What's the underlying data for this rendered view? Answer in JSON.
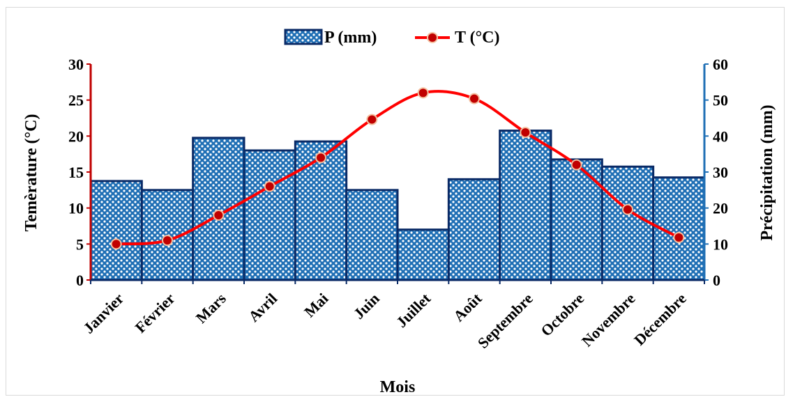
{
  "chart_data": {
    "type": "bar+line",
    "categories": [
      "Janvier",
      "Février",
      "Mars",
      "Avril",
      "Mai",
      "Juin",
      "Juillet",
      "Août",
      "Septembre",
      "Octobre",
      "Novembre",
      "Décembre"
    ],
    "series": [
      {
        "name": "P (mm)",
        "type": "bar",
        "axis": "right",
        "color": "#1f6fb5",
        "border": "#0a2a66",
        "values": [
          27.5,
          25,
          39.5,
          36,
          38.5,
          25,
          14,
          28,
          41.5,
          33.5,
          31.5,
          28.5
        ]
      },
      {
        "name": "T (°C)",
        "type": "line",
        "axis": "left",
        "color": "#ff0000",
        "marker": "#c00000",
        "values": [
          5,
          5.5,
          9,
          13,
          17,
          22.3,
          26,
          25.2,
          20.5,
          16,
          9.8,
          5.9
        ]
      }
    ],
    "xlabel": "Mois",
    "ylabel_left": "Temèrature (°C)",
    "ylabel_right": "Précipitation  (mm)",
    "ylim_left": [
      0,
      30
    ],
    "ylim_right": [
      0,
      60
    ],
    "yticks_left": [
      "0",
      "5",
      "10",
      "15",
      "20",
      "25",
      "30"
    ],
    "yticks_right": [
      "0",
      "10",
      "20",
      "30",
      "40",
      "50",
      "60"
    ],
    "grid": false,
    "legend_position": "top-center",
    "left_axis_color": "#c00000",
    "right_axis_color": "#1f6fb5"
  }
}
